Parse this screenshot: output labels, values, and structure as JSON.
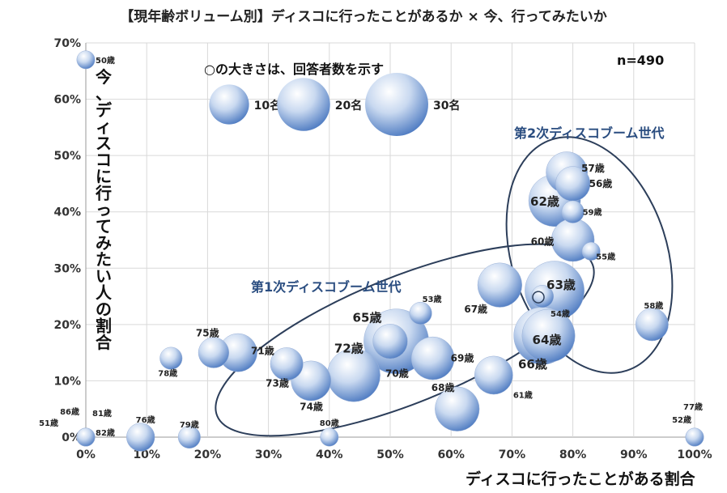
{
  "chart_data": {
    "type": "bubble",
    "title": "【現年齢ボリューム別】ディスコに行ったことがあるか × 今、行ってみたいか",
    "xlabel": "ディスコに行ったことがある割合",
    "ylabel": "今、ディスコに行ってみたい人の割合",
    "n_label": "n=490",
    "xlim": [
      0,
      100
    ],
    "ylim": [
      0,
      70
    ],
    "x_ticks": [
      "0%",
      "10%",
      "20%",
      "30%",
      "40%",
      "50%",
      "60%",
      "70%",
      "80%",
      "90%",
      "100%"
    ],
    "y_ticks": [
      "0%",
      "10%",
      "20%",
      "30%",
      "40%",
      "50%",
      "60%",
      "70%"
    ],
    "legend": {
      "title": "○の大きさは、回答者数を示す",
      "items": [
        {
          "label": "10名",
          "size": 10
        },
        {
          "label": "20名",
          "size": 20
        },
        {
          "label": "30名",
          "size": 30
        }
      ]
    },
    "groups": [
      {
        "name": "第1次ディスコブーム世代"
      },
      {
        "name": "第2次ディスコブーム世代"
      }
    ],
    "points": [
      {
        "label": "50歳",
        "x": 0,
        "y": 67,
        "size": 1
      },
      {
        "label": "51歳",
        "x": 0,
        "y": 0,
        "size": 1
      },
      {
        "label": "86歳",
        "x": 0,
        "y": 0,
        "size": 1
      },
      {
        "label": "81歳",
        "x": 0,
        "y": 0,
        "size": 1
      },
      {
        "label": "82歳",
        "x": 0,
        "y": 0,
        "size": 1
      },
      {
        "label": "76歳",
        "x": 9,
        "y": 0,
        "size": 4
      },
      {
        "label": "79歳",
        "x": 17,
        "y": 0,
        "size": 2
      },
      {
        "label": "80歳",
        "x": 40,
        "y": 0,
        "size": 1
      },
      {
        "label": "78歳",
        "x": 14,
        "y": 14,
        "size": 2
      },
      {
        "label": "75歳",
        "x": 21,
        "y": 15,
        "size": 5
      },
      {
        "label": "71歳",
        "x": 25,
        "y": 15,
        "size": 9
      },
      {
        "label": "73歳",
        "x": 33,
        "y": 13,
        "size": 6
      },
      {
        "label": "74歳",
        "x": 37,
        "y": 10,
        "size": 10
      },
      {
        "label": "72歳",
        "x": 44,
        "y": 11,
        "size": 20
      },
      {
        "label": "65歳",
        "x": 51,
        "y": 17,
        "size": 32
      },
      {
        "label": "70歳",
        "x": 50,
        "y": 17,
        "size": 7
      },
      {
        "label": "53歳",
        "x": 55,
        "y": 22,
        "size": 2
      },
      {
        "label": "69歳",
        "x": 57,
        "y": 14,
        "size": 12
      },
      {
        "label": "68歳",
        "x": 61,
        "y": 5,
        "size": 13
      },
      {
        "label": "67歳",
        "x": 68,
        "y": 27,
        "size": 13
      },
      {
        "label": "61歳",
        "x": 67,
        "y": 11,
        "size": 9
      },
      {
        "label": "66歳",
        "x": 75,
        "y": 18,
        "size": 24
      },
      {
        "label": "64歳",
        "x": 76,
        "y": 18,
        "size": 20
      },
      {
        "label": "63歳",
        "x": 77,
        "y": 26,
        "size": 26
      },
      {
        "label": "54歳",
        "x": 75,
        "y": 25,
        "size": 2
      },
      {
        "label": "62歳",
        "x": 77,
        "y": 42,
        "size": 19
      },
      {
        "label": "57歳",
        "x": 79,
        "y": 47,
        "size": 11
      },
      {
        "label": "56歳",
        "x": 80,
        "y": 45,
        "size": 7
      },
      {
        "label": "59歳",
        "x": 80,
        "y": 40,
        "size": 2
      },
      {
        "label": "60歳",
        "x": 80,
        "y": 35,
        "size": 12
      },
      {
        "label": "55歳",
        "x": 83,
        "y": 33,
        "size": 1
      },
      {
        "label": "58歳",
        "x": 93,
        "y": 20,
        "size": 6
      },
      {
        "label": "52歳",
        "x": 100,
        "y": 0,
        "size": 1
      },
      {
        "label": "77歳",
        "x": 100,
        "y": 0,
        "size": 1
      }
    ]
  }
}
